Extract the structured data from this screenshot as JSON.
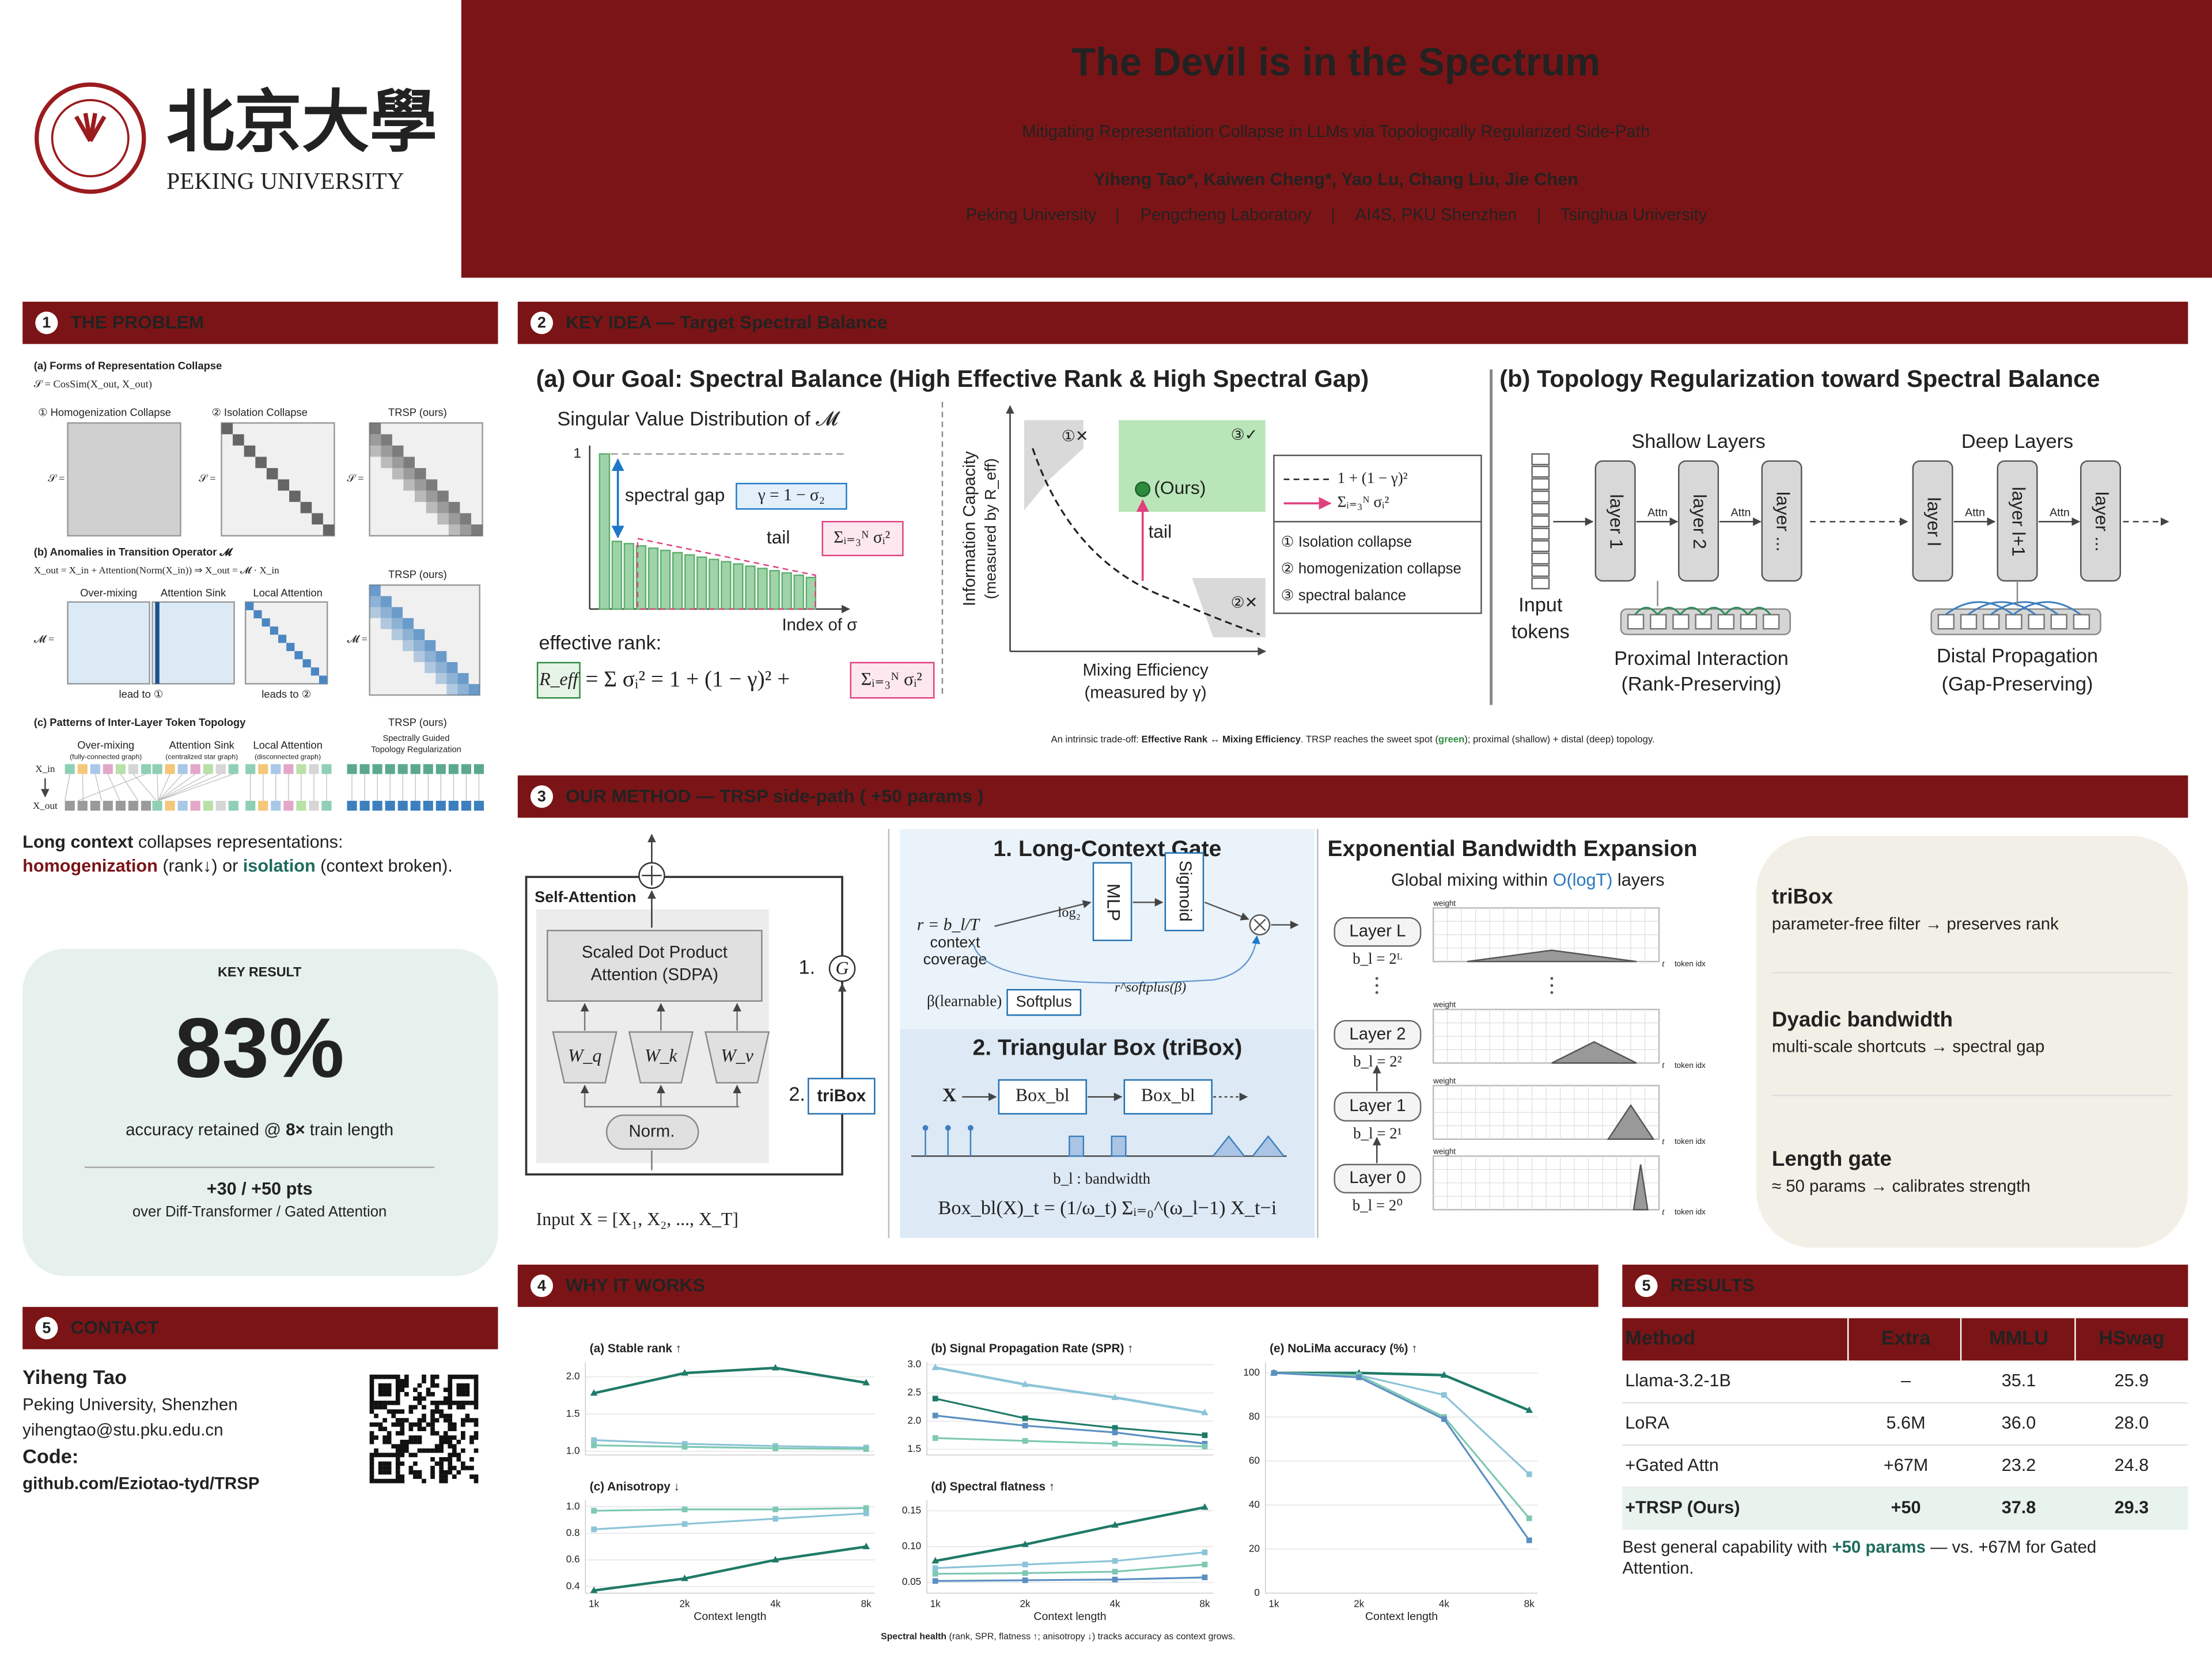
{
  "header": {
    "university_cn": "北京大學",
    "university": "PEKING UNIVERSITY",
    "title": "The Devil is in the Spectrum",
    "subtitle": "Mitigating Representation Collapse in LLMs via Topologically Regularized Side-Path",
    "authors": "Yiheng Tao*,  Kaiwen Cheng*,  Yao Lu,  Chang Liu,  Jie Chen",
    "affiliations": [
      "Peking University",
      "Pengcheng Laboratory",
      "AI4S, PKU Shenzhen",
      "Tsinghua University"
    ],
    "separator": "|"
  },
  "problem": {
    "number": "1",
    "heading": "THE PROBLEM",
    "fig_a": "(a) Forms of Representation Collapse",
    "fig_a_formula": "𝒮 = CosSim(X_out, X_out)",
    "homogenization": "① Homogenization Collapse",
    "isolation": "② Isolation Collapse",
    "trsp": "TRSP (ours)",
    "s_eq": "𝒮 =",
    "fig_b": "(b) Anomalies in Transition Operator 𝓜",
    "fig_b_formula": "X_out = X_in + Attention(Norm(X_in)) ⇒ X_out = 𝓜 · X_in",
    "m_eq": "𝓜 =",
    "over_mixing": "Over-mixing",
    "attention_sink": "Attention Sink",
    "local_attention": "Local Attention",
    "lead1": "lead to ①",
    "lead2": "leads to ②",
    "fig_c": "(c) Patterns of Inter-Layer Token Topology",
    "over_mixing_note": "(fully-connected graph)",
    "sink_note": "(centralized star graph)",
    "local_note": "(disconnected graph)",
    "trsp_note": [
      "Spectrally Guided",
      "Topology Regularization"
    ],
    "x_in": "X_in",
    "x_out": "X_out",
    "summary": [
      "Long context",
      " collapses representations:",
      "homogenization",
      " (rank↓) or ",
      "isolation",
      " (context broken)."
    ]
  },
  "key_result": {
    "label": "KEY RESULT",
    "value": "83%",
    "caption": [
      "accuracy retained @ ",
      "8×",
      " train length"
    ],
    "gain": "+30 / +50 pts",
    "gain_note": "over Diff-Transformer / Gated Attention"
  },
  "contact": {
    "number": "5",
    "heading": "CONTACT",
    "name": "Yiheng Tao",
    "affiliation": "Peking University, Shenzhen",
    "email": "yihengtao@stu.pku.edu.cn",
    "code_label": "Code:",
    "link": "github.com/Eziotao-tyd/TRSP"
  },
  "key_idea": {
    "number": "2",
    "heading": "KEY IDEA  —  Target Spectral Balance",
    "panel_a_title": "(a) Our Goal: Spectral Balance (High Effective Rank & High Spectral Gap)",
    "sv_title": "Singular Value Distribution of 𝓜",
    "one": "1",
    "spectral_gap": "spectral gap",
    "gap_formula": "γ = 1 − σ₂",
    "tail": "tail",
    "tail_formula": "Σᵢ₌₃ᴺ σᵢ²",
    "index": "Index of σ",
    "effective_rank": "effective rank:",
    "reff": "R_eff",
    "reff_eq": "= Σ σᵢ² = 1 + (1 − γ)² +",
    "y_axis": "Information Capacity",
    "y_axis_note": "(measured by R_eff)",
    "x_axis": "Mixing Efficiency",
    "x_axis_note": "(measured by γ)",
    "ours": "(Ours)",
    "region1": "①✕",
    "region2": "②✕",
    "region3": "③✓",
    "legend": [
      "1 + (1 − γ)²",
      "Σᵢ₌₃ᴺ σᵢ²",
      "① Isolation collapse",
      "② homogenization collapse",
      "③ spectral balance"
    ],
    "panel_b_title": "(b) Topology Regularization toward Spectral Balance",
    "shallow": "Shallow Layers",
    "deep": "Deep Layers",
    "layers": [
      "layer 1",
      "layer 2",
      "layer ...",
      "layer l",
      "layer l+1",
      "layer ..."
    ],
    "attn": "Attn",
    "input": "Input",
    "tokens": "tokens",
    "proximal": "Proximal Interaction",
    "proximal_note": "(Rank-Preserving)",
    "distal": "Distal Propagation",
    "distal_note": "(Gap-Preserving)",
    "caption": [
      "An intrinsic trade-off: ",
      "Effective Rank ↔ Mixing Efficiency",
      ".  TRSP reaches the sweet spot (",
      "green",
      "); proximal (shallow) + distal (deep) topology."
    ]
  },
  "method": {
    "number": "3",
    "heading": "OUR METHOD  —  TRSP side-path  ( +50 params )",
    "self_attention": "Self-Attention",
    "sdpa": [
      "Scaled Dot Product",
      "Attention (SDPA)"
    ],
    "wq": "W_q",
    "wk": "W_k",
    "wv": "W_v",
    "norm": "Norm.",
    "gate_marker": "1.",
    "gate_symbol": "G",
    "tribox_marker": "2.",
    "tribox": "triBox",
    "input": "Input X = [X₁, X₂, ..., X_T]",
    "gate_title": "1. Long-Context Gate",
    "ratio": "r = b_l/T",
    "coverage": [
      "context",
      "coverage"
    ],
    "log": "log₂",
    "mlp": "MLP",
    "sigmoid": "Sigmoid",
    "beta": "β(learnable)",
    "softplus": "Softplus",
    "softplus_out": "r^softplus(β)",
    "tribox_title": "2. Triangular Box (triBox)",
    "x": "X",
    "box": "Box_bl",
    "bandwidth": "b_l : bandwidth",
    "box_formula": "Box_bl(X)_t = (1/ω_t) Σᵢ₌₀^(ω_l−1) X_t−i",
    "expansion_title": "Exponential Bandwidth Expansion",
    "expansion_sub": [
      "Global mixing within ",
      "O(logT)",
      " layers"
    ],
    "layers": [
      {
        "name": "Layer L",
        "bw": "b_l = 2ᴸ"
      },
      {
        "name": "Layer 2",
        "bw": "b_l = 2²"
      },
      {
        "name": "Layer 1",
        "bw": "b_l = 2¹"
      },
      {
        "name": "Layer 0",
        "bw": "b_l = 2⁰"
      }
    ],
    "weight": "weight",
    "t": "t",
    "token_idx": "token idx",
    "cards": [
      {
        "title": "triBox",
        "text": "parameter-free filter → preserves rank"
      },
      {
        "title": "Dyadic bandwidth",
        "text": "multi-scale shortcuts → spectral gap"
      },
      {
        "title": "Length gate",
        "text": "≈ 50 params → calibrates strength"
      }
    ]
  },
  "why": {
    "number": "4",
    "heading": "WHY IT WORKS",
    "caption": [
      "Spectral health",
      " (rank, SPR, flatness ↑; anisotropy ↓) tracks accuracy as context grows."
    ],
    "charts": [
      {
        "type": "line",
        "title": "(a) Stable rank  ↑",
        "ylim": [
          0.95,
          2.2
        ],
        "yticks": [
          {
            "value": 1,
            "label": "1.0"
          },
          1.5,
          {
            "value": 2,
            "label": "2.0"
          }
        ],
        "series": [
          {
            "color": "#1f7a68",
            "values": [
              1.78,
              2.05,
              2.12,
              1.92
            ]
          },
          {
            "color": "#8cc4d8",
            "values": [
              1.15,
              1.1,
              1.07,
              1.05
            ]
          },
          {
            "color": "#7ec8b4",
            "values": [
              1.08,
              1.06,
              1.04,
              1.03
            ]
          }
        ]
      },
      {
        "type": "line",
        "title": "(b) Signal Propagation Rate (SPR)  ↑",
        "ylim": [
          1.4,
          3.05
        ],
        "yticks": [
          1.5,
          {
            "value": 2,
            "label": "2.0"
          },
          2.5,
          {
            "value": 3,
            "label": "3.0"
          }
        ],
        "series": [
          {
            "color": "#8cc4d8",
            "values": [
              2.95,
              2.65,
              2.42,
              2.15
            ]
          },
          {
            "color": "#1f7a68",
            "values": [
              2.4,
              2.05,
              1.88,
              1.75
            ]
          },
          {
            "color": "#5b8fc2",
            "values": [
              2.1,
              1.92,
              1.8,
              1.6
            ]
          },
          {
            "color": "#7ec8b4",
            "values": [
              1.7,
              1.65,
              1.6,
              1.55
            ]
          }
        ]
      },
      {
        "type": "line",
        "title": "(e) NoLiMa accuracy (%)  ↑",
        "categories": [
          "1k",
          "2k",
          "4k",
          "8k"
        ],
        "xlabel": "Context length",
        "ylim": [
          0,
          105
        ],
        "yticks": [
          0,
          20,
          40,
          60,
          80,
          100
        ],
        "series": [
          {
            "color": "#1f7a68",
            "values": [
              100,
              100,
              99,
              83
            ]
          },
          {
            "color": "#8cc4d8",
            "values": [
              100,
              99,
              90,
              54
            ]
          },
          {
            "color": "#7ec8b4",
            "values": [
              100,
              99,
              80,
              34
            ]
          },
          {
            "color": "#5b8fc2",
            "values": [
              100,
              98,
              79,
              24
            ]
          }
        ]
      },
      {
        "type": "line",
        "title": "(c) Anisotropy  ↓",
        "categories": [
          "1k",
          "2k",
          "4k",
          "8k"
        ],
        "xlabel": "Context length",
        "ylim": [
          0.35,
          1.05
        ],
        "yticks": [
          0.4,
          0.6,
          0.8,
          {
            "value": 1,
            "label": "1.0"
          }
        ],
        "series": [
          {
            "color": "#1f7a68",
            "values": [
              0.37,
              0.46,
              0.6,
              0.7
            ]
          },
          {
            "color": "#7ec8b4",
            "values": [
              0.97,
              0.98,
              0.98,
              0.99
            ]
          },
          {
            "color": "#8cc4d8",
            "values": [
              0.83,
              0.87,
              0.91,
              0.95
            ]
          }
        ]
      },
      {
        "type": "line",
        "title": "(d) Spectral flatness  ↑",
        "categories": [
          "1k",
          "2k",
          "4k",
          "8k"
        ],
        "xlabel": "Context length",
        "ylim": [
          0.035,
          0.165
        ],
        "yticks": [
          0.05,
          {
            "value": 0.1,
            "label": "0.10"
          },
          0.15
        ],
        "series": [
          {
            "color": "#1f7a68",
            "values": [
              0.08,
              0.103,
              0.13,
              0.155
            ]
          },
          {
            "color": "#8cc4d8",
            "values": [
              0.07,
              0.075,
              0.08,
              0.092
            ]
          },
          {
            "color": "#7ec8b4",
            "values": [
              0.062,
              0.063,
              0.065,
              0.075
            ]
          },
          {
            "color": "#5b8fc2",
            "values": [
              0.052,
              0.053,
              0.054,
              0.057
            ]
          }
        ]
      }
    ]
  },
  "results": {
    "number": "5",
    "heading": "RESULTS",
    "columns": [
      "Method",
      "Extra",
      "MMLU",
      "HSwag"
    ],
    "rows": [
      [
        "Llama-3.2-1B",
        "–",
        "35.1",
        "25.9"
      ],
      [
        "LoRA",
        "5.6M",
        "36.0",
        "28.0"
      ],
      [
        "+Gated Attn",
        "+67M",
        "23.2",
        "24.8"
      ],
      [
        "+TRSP (Ours)",
        "+50",
        "37.8",
        "29.3"
      ]
    ],
    "note": [
      "Best general capability with ",
      "+50 params",
      " — vs. +67M for Gated",
      "Attention."
    ]
  }
}
